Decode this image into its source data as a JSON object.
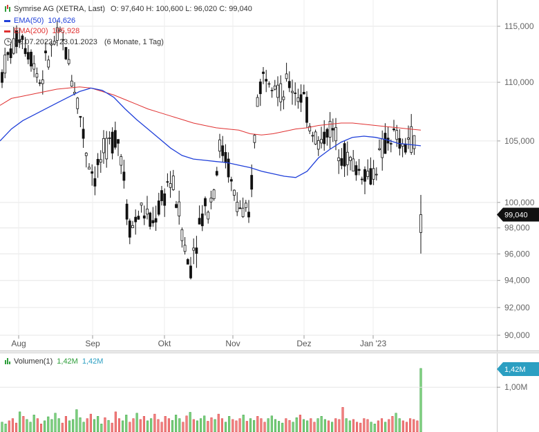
{
  "colors": {
    "up": "#2e9e3a",
    "down": "#d93a3a",
    "candle": "#111111",
    "ema50": "#1f3fd9",
    "ema200": "#e03030",
    "grid": "#e6e6e6",
    "badge_price": "#111111",
    "badge_volume": "#2b9fc2"
  },
  "header": {
    "title": "Symrise AG (XETRA, Last)",
    "ohlc": "O: 97,640  H: 100,600  L: 96,020  C: 99,040",
    "ema50_label": "EMA(50)",
    "ema50_value": "104,626",
    "ema200_label": "EMA(200)",
    "ema200_value": "105,928",
    "clock_icon": "clock-icon",
    "range": "25.07.2022 - 23.01.2023",
    "range_detail": "(6 Monate, 1 Tag)"
  },
  "chart_data": {
    "type": "candlestick",
    "yticks": [
      "115,000",
      "110,000",
      "105,000",
      "100,000",
      "98,000",
      "96,000",
      "94,000",
      "92,000",
      "90,000"
    ],
    "ytick_values": [
      115,
      110,
      105,
      100,
      98,
      96,
      94,
      92,
      90
    ],
    "y_scale": "log",
    "xticks": [
      "Aug",
      "Sep",
      "Okt",
      "Nov",
      "Dez",
      "Jan '23"
    ],
    "last_price_label": "99,040",
    "last_price": 99.04,
    "ema50": [
      105.0,
      106.0,
      106.7,
      107.2,
      107.7,
      108.2,
      108.7,
      109.2,
      109.5,
      109.3,
      108.7,
      107.7,
      106.8,
      106.0,
      105.2,
      104.4,
      103.8,
      103.5,
      103.4,
      103.3,
      103.2,
      103.0,
      102.8,
      102.5,
      102.3,
      102.1,
      102.0,
      102.5,
      103.6,
      104.3,
      104.9,
      105.3,
      105.4,
      105.3,
      105.1,
      104.8,
      104.7,
      104.6
    ],
    "ema200": [
      108.0,
      108.6,
      108.8,
      109.0,
      109.2,
      109.4,
      109.5,
      109.6,
      109.5,
      109.2,
      108.9,
      108.5,
      108.1,
      107.7,
      107.4,
      107.1,
      106.8,
      106.5,
      106.3,
      106.1,
      106.0,
      105.9,
      105.6,
      105.5,
      105.6,
      105.8,
      106.0,
      106.1,
      106.3,
      106.4,
      106.5,
      106.5,
      106.4,
      106.3,
      106.2,
      106.1,
      106.0,
      105.9
    ],
    "volume": {
      "label": "Volumen(1)",
      "value": "1,42M",
      "value2": "1,42M",
      "yticks": [
        "1,00M"
      ],
      "ytick_values": [
        1.0
      ],
      "last_label": "1,42M",
      "last": 1.42,
      "values": [
        0.22,
        0.18,
        0.25,
        0.3,
        0.2,
        0.45,
        0.35,
        0.28,
        0.22,
        0.38,
        0.3,
        0.18,
        0.25,
        0.34,
        0.28,
        0.42,
        0.3,
        0.2,
        0.35,
        0.25,
        0.28,
        0.5,
        0.32,
        0.22,
        0.3,
        0.4,
        0.28,
        0.35,
        0.18,
        0.32,
        0.26,
        0.2,
        0.45,
        0.3,
        0.25,
        0.38,
        0.22,
        0.3,
        0.42,
        0.28,
        0.35,
        0.25,
        0.3,
        0.4,
        0.28,
        0.22,
        0.35,
        0.3,
        0.26,
        0.38,
        0.3,
        0.22,
        0.36,
        0.44,
        0.28,
        0.25,
        0.3,
        0.36,
        0.24,
        0.32,
        0.28,
        0.4,
        0.3,
        0.22,
        0.35,
        0.28,
        0.25,
        0.3,
        0.38,
        0.24,
        0.3,
        0.26,
        0.35,
        0.3,
        0.22,
        0.3,
        0.36,
        0.28,
        0.24,
        0.2,
        0.3,
        0.26,
        0.22,
        0.32,
        0.38,
        0.28,
        0.25,
        0.3,
        0.22,
        0.3,
        0.35,
        0.28,
        0.25,
        0.22,
        0.3,
        0.28,
        0.55,
        0.3,
        0.25,
        0.28,
        0.22,
        0.2,
        0.3,
        0.28,
        0.22,
        0.18,
        0.25,
        0.3,
        0.22,
        0.28,
        0.35,
        0.42,
        0.3,
        0.25,
        0.22,
        0.3,
        0.28,
        0.25,
        1.42
      ]
    }
  }
}
